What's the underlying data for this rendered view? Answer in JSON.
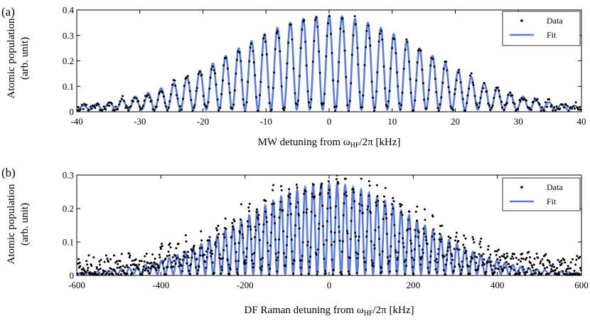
{
  "chart_data": [
    {
      "type": "scatter",
      "panel_label": "(a)",
      "title": "",
      "xlabel_prefix": "MW detuning from ω",
      "xlabel_sub": "HF",
      "xlabel_suffix": "/2π [kHz]",
      "ylabel_line1": "Atomic population",
      "ylabel_line2": "(arb. unit)",
      "xlim": [
        -40,
        40
      ],
      "ylim": [
        0,
        0.4
      ],
      "xticks": [
        -40,
        -30,
        -20,
        -10,
        0,
        10,
        20,
        30,
        40
      ],
      "yticks": [
        0,
        0.1,
        0.2,
        0.3,
        0.4
      ],
      "ytick_labels": [
        "0",
        "0.1",
        "0.2",
        "0.3",
        "0.4"
      ],
      "legend": {
        "position": "top-right",
        "data_label": "Data",
        "fit_label": "Fit"
      },
      "series": [
        {
          "name": "Data",
          "kind": "points",
          "color": "#000000",
          "model": {
            "amplitude": 0.37,
            "envelope_sigma": 15.5,
            "fringe_period": 2.05,
            "baseline": 0.008,
            "n_points": 420,
            "noise": 0.015
          }
        },
        {
          "name": "Fit",
          "kind": "line",
          "color": "#5b7be0",
          "model": {
            "amplitude": 0.37,
            "envelope_sigma": 15.5,
            "fringe_period": 2.05,
            "baseline": 0.008
          }
        }
      ]
    },
    {
      "type": "scatter",
      "panel_label": "(b)",
      "title": "",
      "xlabel_prefix": "DF Raman detuning from ω",
      "xlabel_sub": "HF",
      "xlabel_suffix": "/2π [kHz]",
      "ylabel_line1": "Atomic population",
      "ylabel_line2": "(arb. unit)",
      "xlim": [
        -600,
        600
      ],
      "ylim": [
        0,
        0.3
      ],
      "xticks": [
        -600,
        -400,
        -200,
        0,
        200,
        400,
        600
      ],
      "yticks": [
        0,
        0.1,
        0.2,
        0.3
      ],
      "ytick_labels": [
        "0",
        "0.1",
        "0.2",
        "0.3"
      ],
      "legend": {
        "position": "top-right",
        "data_label": "Data",
        "fit_label": "Fit"
      },
      "series": [
        {
          "name": "Data",
          "kind": "points",
          "color": "#000000",
          "model": {
            "amplitude": 0.27,
            "envelope_sigma": 205,
            "fringe_period": 19,
            "baseline": 0.02,
            "n_points": 900,
            "noise": 0.035
          }
        },
        {
          "name": "Fit",
          "kind": "line",
          "color": "#5b7be0",
          "model": {
            "amplitude": 0.27,
            "envelope_sigma": 205,
            "fringe_period": 19,
            "baseline": 0.004
          }
        }
      ]
    }
  ]
}
